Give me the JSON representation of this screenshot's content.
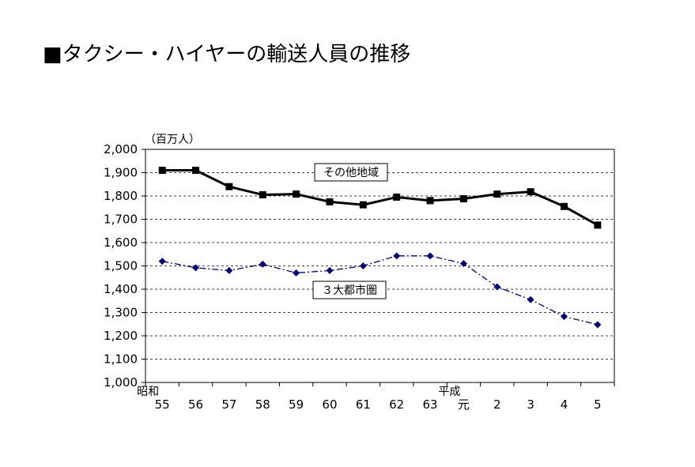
{
  "title": "■タクシー・ハイヤーの輸送人員の推移",
  "chart_data": {
    "type": "line",
    "unit_label": "（百万人）",
    "categories": [
      "55",
      "56",
      "57",
      "58",
      "59",
      "60",
      "61",
      "62",
      "63",
      "元",
      "2",
      "3",
      "4",
      "5"
    ],
    "era_labels": [
      {
        "text": "昭和",
        "category_index": 0
      },
      {
        "text": "平成",
        "category_index": 9
      }
    ],
    "ylim": [
      1000,
      2000
    ],
    "yticks": [
      "1,000",
      "1,100",
      "1,200",
      "1,300",
      "1,400",
      "1,500",
      "1,600",
      "1,700",
      "1,800",
      "1,900",
      "2,000"
    ],
    "grid": true,
    "series": [
      {
        "name": "その他地域",
        "color": "#000000",
        "style": "solid",
        "marker": "square",
        "values": [
          1910,
          1910,
          1840,
          1805,
          1808,
          1775,
          1762,
          1795,
          1780,
          1788,
          1808,
          1818,
          1755,
          1675
        ]
      },
      {
        "name": "３大都市圏",
        "color": "#000080",
        "style": "dash-dot",
        "marker": "diamond",
        "values": [
          1520,
          1492,
          1480,
          1507,
          1470,
          1480,
          1500,
          1543,
          1543,
          1510,
          1410,
          1355,
          1283,
          1248
        ]
      }
    ]
  }
}
